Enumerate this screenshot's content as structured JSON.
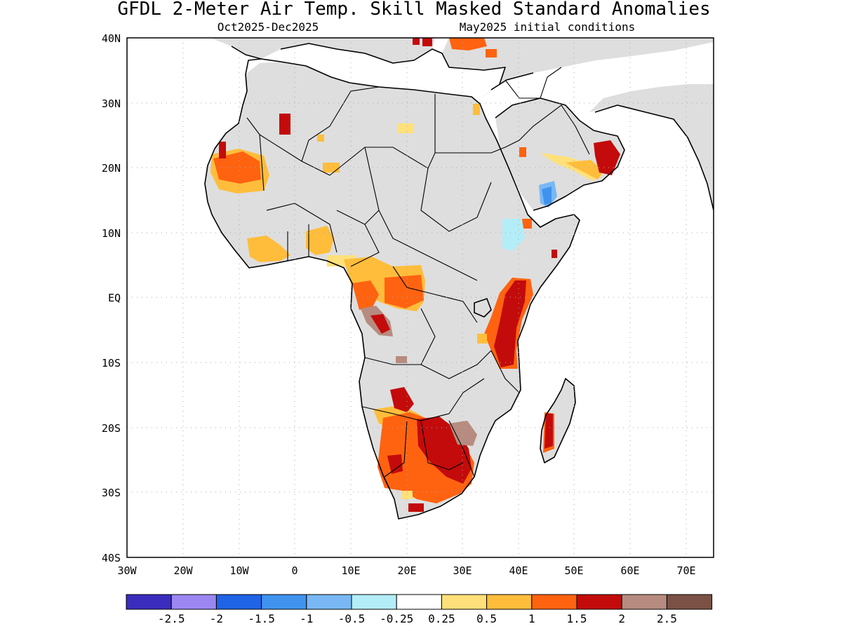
{
  "title": "GFDL 2-Meter Air Temp. Skill Masked Standard Anomalies",
  "subtitle_left": "Oct2025-Dec2025",
  "subtitle_right": "May2025 initial conditions",
  "lon_ticks": [
    "30W",
    "20W",
    "10W",
    "0",
    "10E",
    "20E",
    "30E",
    "40E",
    "50E",
    "60E",
    "70E"
  ],
  "lat_ticks": [
    "40N",
    "30N",
    "20N",
    "10N",
    "EQ",
    "10S",
    "20S",
    "30S",
    "40S"
  ],
  "colorbar": {
    "colors": [
      "#3a2dbd",
      "#9c87f2",
      "#1f63e6",
      "#3f93ee",
      "#79b8f5",
      "#b3edf8",
      "#ffffff",
      "#ffe07a",
      "#ffbd3b",
      "#ff6310",
      "#c30b0b",
      "#b78b7f",
      "#7b5146"
    ],
    "labels": [
      "-2.5",
      "-2",
      "-1.5",
      "-1",
      "-0.5",
      "-0.25",
      "0.25",
      "0.5",
      "1",
      "1.5",
      "2",
      "2.5"
    ]
  },
  "colors": {
    "land_masked": "#dedede",
    "ocean": "#ffffff"
  }
}
